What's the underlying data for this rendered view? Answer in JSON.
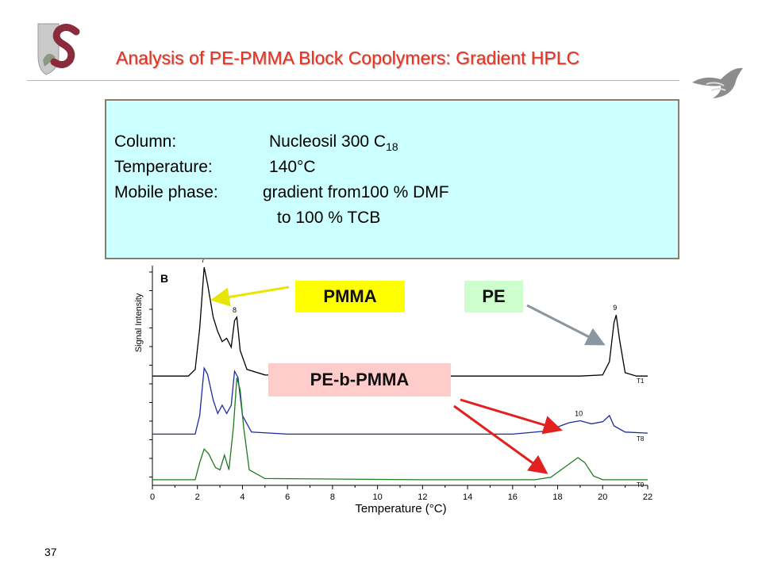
{
  "slide": {
    "title": "Analysis of PE-PMMA Block Copolymers: Gradient HPLC",
    "number": "37",
    "logo_icon": "university-crest-s-logo-icon",
    "corner_icon": "bird-emblem-icon",
    "colors": {
      "title": "#e8311f",
      "infobox_bg": "#ccffff",
      "infobox_border": "#8b7d6b"
    }
  },
  "conditions": {
    "column_label": "Column:",
    "column_value": "Nucleosil 300 C",
    "column_subscript": "18",
    "temperature_label": "Temperature:",
    "temperature_value": "140°C",
    "mobile_label": "Mobile phase:",
    "mobile_value_line1": "gradient from100 % DMF",
    "mobile_value_line2": "to 100 % TCB"
  },
  "callouts": {
    "pmma": {
      "label": "PMMA",
      "color": "#ffff00"
    },
    "pe": {
      "label": "PE",
      "color": "#ccffcc"
    },
    "pe_b_pmma": {
      "label": "PE-b-PMMA",
      "color": "#ffcccc"
    }
  },
  "chart_data": {
    "type": "line",
    "panel_label": "B",
    "xlabel": "Temperature (°C)",
    "ylabel": "Signal Intensity",
    "xlim": [
      0,
      22
    ],
    "x_ticks": [
      "0",
      "2",
      "4",
      "6",
      "8",
      "10",
      "12",
      "14",
      "16",
      "18",
      "20",
      "22"
    ],
    "grid": false,
    "series": [
      {
        "name": "T1",
        "color": "#000000",
        "points": [
          [
            0,
            0.02
          ],
          [
            1.6,
            0.02
          ],
          [
            1.9,
            0.08
          ],
          [
            2.1,
            0.45
          ],
          [
            2.3,
            1.0
          ],
          [
            2.45,
            0.85
          ],
          [
            2.7,
            0.55
          ],
          [
            2.9,
            0.42
          ],
          [
            3.1,
            0.33
          ],
          [
            3.3,
            0.36
          ],
          [
            3.5,
            0.28
          ],
          [
            3.65,
            0.52
          ],
          [
            3.75,
            0.55
          ],
          [
            3.9,
            0.25
          ],
          [
            4.2,
            0.08
          ],
          [
            5,
            0.03
          ],
          [
            12,
            0.02
          ],
          [
            19,
            0.02
          ],
          [
            20,
            0.03
          ],
          [
            20.3,
            0.15
          ],
          [
            20.5,
            0.5
          ],
          [
            20.6,
            0.57
          ],
          [
            20.75,
            0.35
          ],
          [
            21,
            0.05
          ],
          [
            21.5,
            0.02
          ],
          [
            22,
            0.02
          ]
        ],
        "peak_labels": [
          {
            "x": 2.3,
            "text": "7"
          },
          {
            "x": 3.7,
            "text": "8"
          },
          {
            "x": 20.6,
            "text": "9"
          }
        ]
      },
      {
        "name": "T8",
        "color": "#1f2a9e",
        "points": [
          [
            0,
            0.02
          ],
          [
            1.9,
            0.02
          ],
          [
            2.1,
            0.2
          ],
          [
            2.3,
            0.66
          ],
          [
            2.45,
            0.6
          ],
          [
            2.7,
            0.35
          ],
          [
            2.9,
            0.22
          ],
          [
            3.1,
            0.3
          ],
          [
            3.3,
            0.22
          ],
          [
            3.5,
            0.3
          ],
          [
            3.65,
            0.63
          ],
          [
            3.8,
            0.57
          ],
          [
            4.0,
            0.2
          ],
          [
            4.4,
            0.04
          ],
          [
            6,
            0.02
          ],
          [
            16,
            0.02
          ],
          [
            17.5,
            0.05
          ],
          [
            18.5,
            0.13
          ],
          [
            19,
            0.15
          ],
          [
            19.5,
            0.12
          ],
          [
            20,
            0.14
          ],
          [
            20.3,
            0.2
          ],
          [
            20.5,
            0.1
          ],
          [
            21,
            0.04
          ],
          [
            22,
            0.03
          ]
        ],
        "peak_labels": [
          {
            "x": 18.9,
            "text": "10"
          }
        ]
      },
      {
        "name": "T9",
        "color": "#1e7b1e",
        "points": [
          [
            0,
            0.02
          ],
          [
            1.9,
            0.02
          ],
          [
            2.1,
            0.16
          ],
          [
            2.3,
            0.27
          ],
          [
            2.5,
            0.23
          ],
          [
            2.8,
            0.12
          ],
          [
            3.0,
            0.1
          ],
          [
            3.2,
            0.22
          ],
          [
            3.4,
            0.1
          ],
          [
            3.6,
            0.45
          ],
          [
            3.75,
            0.85
          ],
          [
            3.9,
            0.75
          ],
          [
            4.05,
            0.45
          ],
          [
            4.3,
            0.1
          ],
          [
            5,
            0.03
          ],
          [
            12,
            0.02
          ],
          [
            17,
            0.02
          ],
          [
            17.7,
            0.04
          ],
          [
            18.3,
            0.12
          ],
          [
            18.9,
            0.2
          ],
          [
            19.2,
            0.16
          ],
          [
            19.6,
            0.05
          ],
          [
            20,
            0.02
          ],
          [
            22,
            0.02
          ]
        ],
        "peak_labels": []
      }
    ]
  }
}
